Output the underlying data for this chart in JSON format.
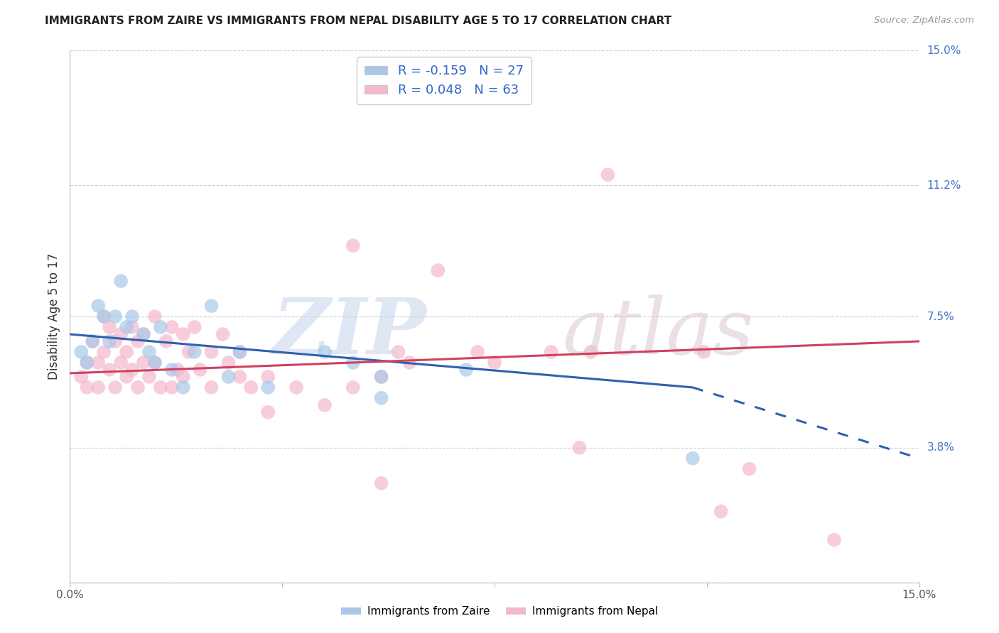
{
  "title": "IMMIGRANTS FROM ZAIRE VS IMMIGRANTS FROM NEPAL DISABILITY AGE 5 TO 17 CORRELATION CHART",
  "source": "Source: ZipAtlas.com",
  "ylabel": "Disability Age 5 to 17",
  "xlim": [
    0.0,
    15.0
  ],
  "ylim": [
    0.0,
    15.0
  ],
  "yticks": [
    0.0,
    3.8,
    7.5,
    11.2,
    15.0
  ],
  "ytick_labels": [
    "",
    "3.8%",
    "7.5%",
    "11.2%",
    "15.0%"
  ],
  "grid_color": "#cccccc",
  "zaire_R": -0.159,
  "zaire_N": 27,
  "nepal_R": 0.048,
  "nepal_N": 63,
  "zaire_color": "#a8c8e8",
  "nepal_color": "#f4b8cc",
  "zaire_line_color": "#3060b0",
  "nepal_line_color": "#d04060",
  "legend_text_color": "#3366cc",
  "zaire_line_y0": 7.0,
  "zaire_line_y_end_solid": 5.5,
  "zaire_line_x_solid_end": 11.0,
  "zaire_line_y15": 3.5,
  "nepal_line_y0": 5.9,
  "nepal_line_y15": 6.8,
  "zaire_x": [
    0.2,
    0.3,
    0.4,
    0.5,
    0.6,
    0.7,
    0.8,
    0.9,
    1.0,
    1.1,
    1.3,
    1.4,
    1.5,
    1.6,
    1.8,
    2.0,
    2.2,
    2.5,
    2.8,
    3.0,
    3.5,
    4.5,
    5.0,
    5.5,
    5.5,
    7.0,
    11.0
  ],
  "zaire_y": [
    6.5,
    6.2,
    6.8,
    7.8,
    7.5,
    6.8,
    7.5,
    8.5,
    7.2,
    7.5,
    7.0,
    6.5,
    6.2,
    7.2,
    6.0,
    5.5,
    6.5,
    7.8,
    5.8,
    6.5,
    5.5,
    6.5,
    6.2,
    5.8,
    5.2,
    6.0,
    3.5
  ],
  "nepal_x": [
    0.2,
    0.3,
    0.3,
    0.4,
    0.5,
    0.5,
    0.6,
    0.6,
    0.7,
    0.7,
    0.8,
    0.8,
    0.9,
    0.9,
    1.0,
    1.0,
    1.1,
    1.1,
    1.2,
    1.2,
    1.3,
    1.3,
    1.4,
    1.5,
    1.5,
    1.6,
    1.7,
    1.8,
    1.8,
    1.9,
    2.0,
    2.0,
    2.1,
    2.2,
    2.3,
    2.5,
    2.5,
    2.7,
    2.8,
    3.0,
    3.0,
    3.2,
    3.5,
    3.5,
    4.0,
    4.5,
    5.0,
    5.5,
    5.8,
    6.0,
    7.5,
    8.5,
    9.0,
    9.5,
    11.2,
    12.0,
    13.5,
    5.0,
    5.5,
    6.5,
    7.2,
    9.2,
    11.5
  ],
  "nepal_y": [
    5.8,
    6.2,
    5.5,
    6.8,
    6.2,
    5.5,
    7.5,
    6.5,
    7.2,
    6.0,
    6.8,
    5.5,
    7.0,
    6.2,
    5.8,
    6.5,
    7.2,
    6.0,
    6.8,
    5.5,
    7.0,
    6.2,
    5.8,
    7.5,
    6.2,
    5.5,
    6.8,
    7.2,
    5.5,
    6.0,
    7.0,
    5.8,
    6.5,
    7.2,
    6.0,
    6.5,
    5.5,
    7.0,
    6.2,
    5.8,
    6.5,
    5.5,
    5.8,
    4.8,
    5.5,
    5.0,
    5.5,
    5.8,
    6.5,
    6.2,
    6.2,
    6.5,
    3.8,
    11.5,
    6.5,
    3.2,
    1.2,
    9.5,
    2.8,
    8.8,
    6.5,
    6.5,
    2.0
  ]
}
